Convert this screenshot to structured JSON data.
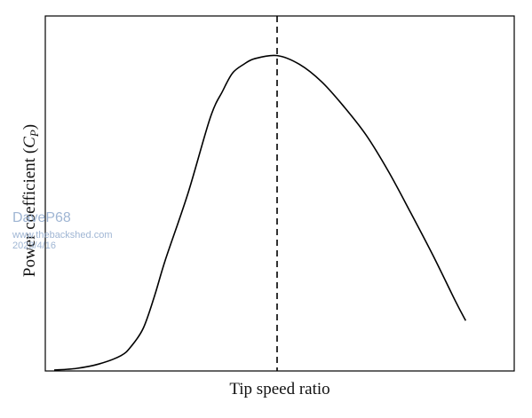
{
  "chart_data": {
    "type": "line",
    "title": "",
    "xlabel": "Tip speed ratio",
    "ylabel_prefix": "Power coefficient (",
    "ylabel_symbol": "C",
    "ylabel_subscript": "P",
    "ylabel_suffix": ")",
    "ticks": "none",
    "grid": false,
    "xlim": [
      0,
      100
    ],
    "ylim": [
      0,
      100
    ],
    "series": [
      {
        "x": [
          0,
          5,
          10,
          15,
          17.3,
          20,
          22.5,
          25,
          30,
          35,
          37.8,
          40,
          42.5,
          45,
          50,
          55,
          60,
          65,
          70,
          75,
          80,
          85,
          90,
          92.3
        ],
        "y": [
          0,
          0.5,
          1.8,
          4.3,
          7.1,
          12.5,
          22,
          33,
          52.5,
          75,
          83,
          88.3,
          90.9,
          92.6,
          93.5,
          90.9,
          85.7,
          78.3,
          69.8,
          59,
          46.7,
          34,
          20.5,
          14.7
        ]
      }
    ],
    "reference_line": {
      "x": 50,
      "style": "dashed"
    }
  },
  "watermark": {
    "name": "DaveP68",
    "site": "www.thebackshed.com",
    "date": "2023/4/16",
    "color": "#8fa9cc"
  }
}
